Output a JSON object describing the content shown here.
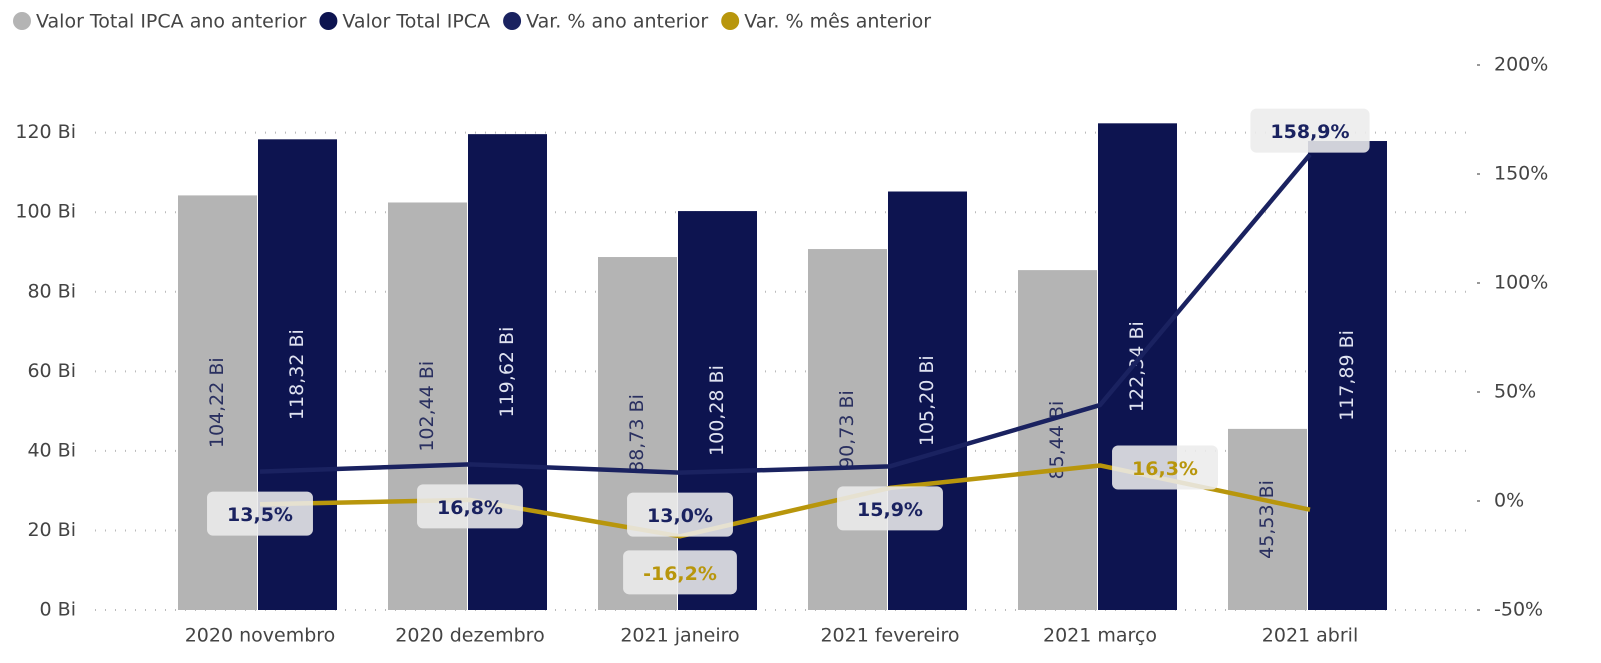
{
  "chart_data": {
    "type": "bar-line",
    "categories": [
      "2020 novembro",
      "2020 dezembro",
      "2021 janeiro",
      "2021 fevereiro",
      "2021 março",
      "2021 abril"
    ],
    "series": [
      {
        "name": "Valor Total IPCA ano anterior",
        "color": "#b4b4b4",
        "type": "bar",
        "values": [
          104.22,
          102.44,
          88.73,
          90.73,
          85.44,
          45.53
        ],
        "value_labels": [
          "104,22 Bi",
          "102,44 Bi",
          "88,73 Bi",
          "90,73 Bi",
          "85,44 Bi",
          "45,53 Bi"
        ]
      },
      {
        "name": "Valor Total IPCA",
        "color": "#0d1450",
        "type": "bar",
        "values": [
          118.32,
          119.62,
          100.28,
          105.2,
          122.34,
          117.89
        ],
        "value_labels": [
          "118,32 Bi",
          "119,62 Bi",
          "100,28 Bi",
          "105,20 Bi",
          "122,34 Bi",
          "117,89 Bi"
        ]
      },
      {
        "name": "Var. % ano anterior",
        "color": "#1a2260",
        "type": "line",
        "axis": "y2",
        "values": [
          13.5,
          16.8,
          13.0,
          15.9,
          44,
          158.9
        ],
        "value_labels": [
          "13,5%",
          "16,8%",
          "13,0%",
          "15,9%",
          null,
          "158,9%"
        ]
      },
      {
        "name": "Var. % mês anterior",
        "color": "#b8960c",
        "type": "line",
        "axis": "y2",
        "values": [
          -1.5,
          0.5,
          -16.2,
          6,
          16.3,
          -4
        ],
        "value_labels": [
          null,
          null,
          "-16,2%",
          null,
          "16,3%",
          null
        ]
      }
    ],
    "ylim": [
      0,
      137
    ],
    "yticks": [
      {
        "value": 0,
        "label": "0 Bi"
      },
      {
        "value": 20,
        "label": "20 Bi"
      },
      {
        "value": 40,
        "label": "40 Bi"
      },
      {
        "value": 60,
        "label": "60 Bi"
      },
      {
        "value": 80,
        "label": "80 Bi"
      },
      {
        "value": 100,
        "label": "100 Bi"
      },
      {
        "value": 120,
        "label": "120 Bi"
      }
    ],
    "y2lim": [
      -50,
      200
    ],
    "y2ticks": [
      {
        "value": -50,
        "label": "-50%"
      },
      {
        "value": 0,
        "label": "0%"
      },
      {
        "value": 50,
        "label": "50%"
      },
      {
        "value": 100,
        "label": "100%"
      },
      {
        "value": 150,
        "label": "150%"
      },
      {
        "value": 200,
        "label": "200%"
      }
    ],
    "grid": true,
    "legend": "top-left"
  }
}
